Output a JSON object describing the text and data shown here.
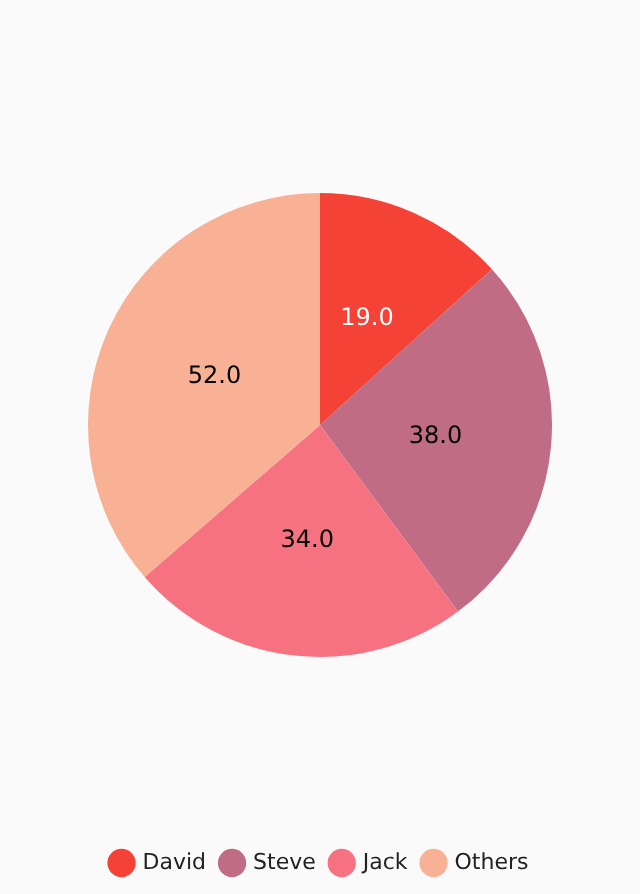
{
  "chart_data": {
    "type": "pie",
    "categories": [
      "David",
      "Steve",
      "Jack",
      "Others"
    ],
    "values": [
      19.0,
      38.0,
      34.0,
      52.0
    ],
    "colors": [
      "#f44336",
      "#c06c84",
      "#f67280",
      "#f8b195"
    ],
    "value_labels": [
      "19.0",
      "38.0",
      "34.0",
      "52.0"
    ],
    "legend": "bottom"
  }
}
